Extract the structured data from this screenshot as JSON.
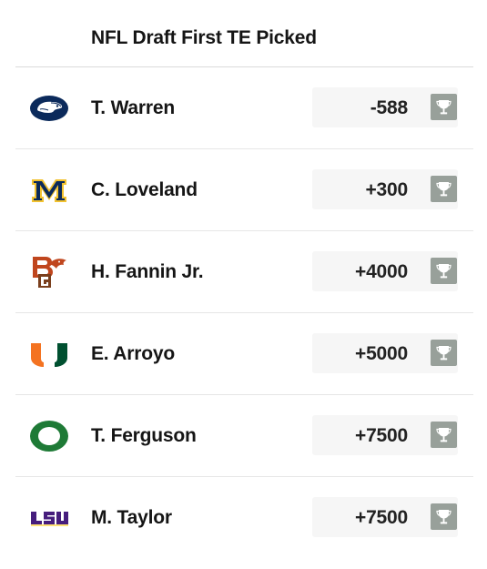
{
  "header": {
    "title": "NFL Draft First TE Picked"
  },
  "colors": {
    "trophy_bg": "#98a09a",
    "odds_bg": "#f6f6f6"
  },
  "rows": [
    {
      "name": "T. Warren",
      "odds": "-588",
      "logo": "penn-state-logo-icon"
    },
    {
      "name": "C. Loveland",
      "odds": "+300",
      "logo": "michigan-logo-icon"
    },
    {
      "name": "H. Fannin Jr.",
      "odds": "+4000",
      "logo": "bowling-green-logo-icon"
    },
    {
      "name": "E. Arroyo",
      "odds": "+5000",
      "logo": "miami-logo-icon"
    },
    {
      "name": "T. Ferguson",
      "odds": "+7500",
      "logo": "oregon-logo-icon"
    },
    {
      "name": "M. Taylor",
      "odds": "+7500",
      "logo": "lsu-logo-icon"
    }
  ]
}
